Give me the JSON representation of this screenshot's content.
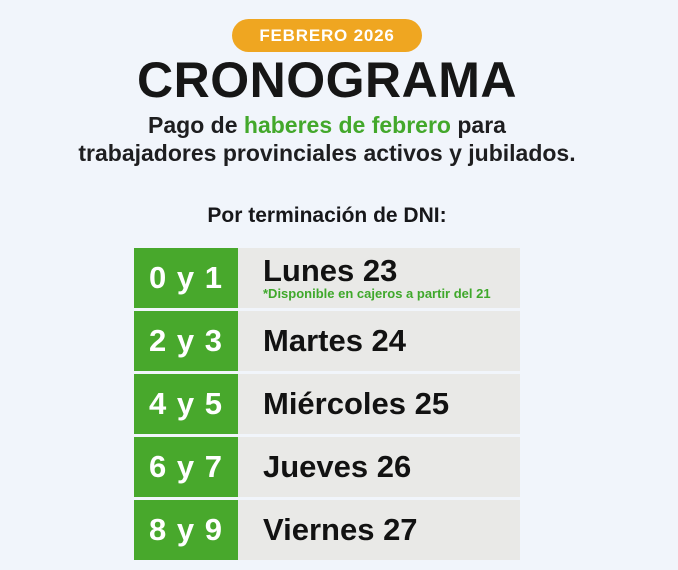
{
  "header": {
    "badge": "FEBRERO 2026",
    "title": "CRONOGRAMA",
    "subtitle": {
      "line1_prefix": "Pago de ",
      "line1_highlight": "haberes de febrero",
      "line1_suffix": " para",
      "line2": "trabajadores provinciales activos y jubilados."
    }
  },
  "schedule": {
    "heading": "Por terminación de DNI:",
    "rows": [
      {
        "dni": "0 y 1",
        "day": "Lunes 23",
        "note": "*Disponible en cajeros a partir del 21"
      },
      {
        "dni": "2 y 3",
        "day": "Martes 24"
      },
      {
        "dni": "4 y 5",
        "day": "Miércoles 25"
      },
      {
        "dni": "6 y 7",
        "day": "Jueves 26"
      },
      {
        "dni": "8 y 9",
        "day": "Viernes 27"
      }
    ]
  },
  "colors": {
    "background": "#f1f5fb",
    "badge_amber": "#efa621",
    "accent_green": "#48a82c",
    "note_green": "#3fa82b",
    "row_gray": "#e9e9e7",
    "text_dark": "#161616"
  }
}
